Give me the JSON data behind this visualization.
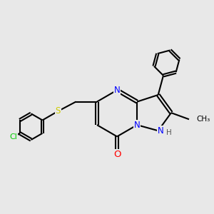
{
  "background_color": "#e8e8e8",
  "bond_color": "#000000",
  "bond_width": 1.5,
  "atom_colors": {
    "N": "#0000ff",
    "O": "#ff0000",
    "S": "#cccc00",
    "Cl": "#00cc00",
    "C": "#000000",
    "H": "#555555"
  },
  "font_size": 8.5,
  "fig_size": [
    3.0,
    3.0
  ],
  "dpi": 100
}
